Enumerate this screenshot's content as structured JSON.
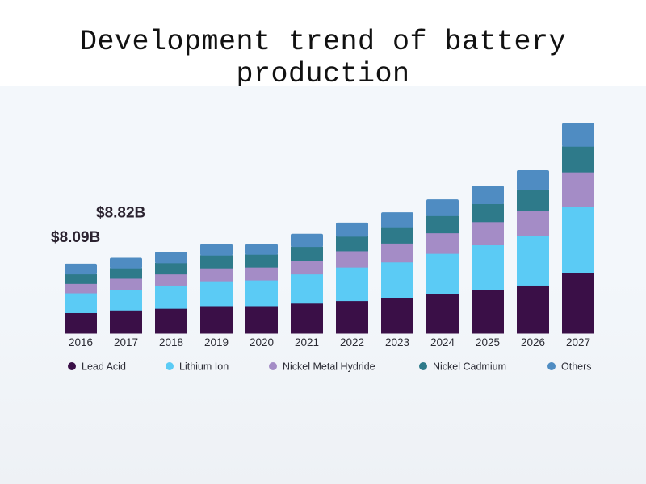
{
  "title": "Development trend of battery production",
  "chart_data": {
    "type": "bar",
    "stacked": true,
    "title": "Development trend of battery production",
    "xlabel": "",
    "ylabel": "",
    "categories": [
      "2016",
      "2017",
      "2018",
      "2019",
      "2020",
      "2021",
      "2022",
      "2023",
      "2024",
      "2025",
      "2026",
      "2027"
    ],
    "series": [
      {
        "name": "Lead Acid",
        "color": "#3a0f47",
        "values": [
          2.4,
          2.7,
          2.9,
          3.2,
          3.2,
          3.5,
          3.8,
          4.1,
          4.6,
          5.1,
          5.6,
          7.1
        ]
      },
      {
        "name": "Lithium Ion",
        "color": "#5bcbf5",
        "values": [
          2.3,
          2.4,
          2.7,
          2.9,
          3.0,
          3.4,
          3.9,
          4.2,
          4.7,
          5.2,
          5.8,
          7.7
        ]
      },
      {
        "name": "Nickel Metal Hydride",
        "color": "#a48cc6",
        "values": [
          1.1,
          1.3,
          1.3,
          1.5,
          1.5,
          1.6,
          1.9,
          2.2,
          2.4,
          2.7,
          2.9,
          4.0
        ]
      },
      {
        "name": "Nickel Cadmium",
        "color": "#2e7a8a",
        "values": [
          1.1,
          1.2,
          1.3,
          1.5,
          1.5,
          1.6,
          1.7,
          1.8,
          2.0,
          2.1,
          2.4,
          3.0
        ]
      },
      {
        "name": "Others",
        "color": "#4f8cc2",
        "values": [
          1.2,
          1.2,
          1.3,
          1.3,
          1.2,
          1.5,
          1.6,
          1.8,
          1.9,
          2.1,
          2.3,
          2.7
        ]
      }
    ],
    "annotations": [
      {
        "category": "2016",
        "text": "$8.09B"
      },
      {
        "category": "2017",
        "text": "$8.82B"
      }
    ],
    "unit": "USD billion",
    "grid": false,
    "legend_position": "bottom"
  }
}
